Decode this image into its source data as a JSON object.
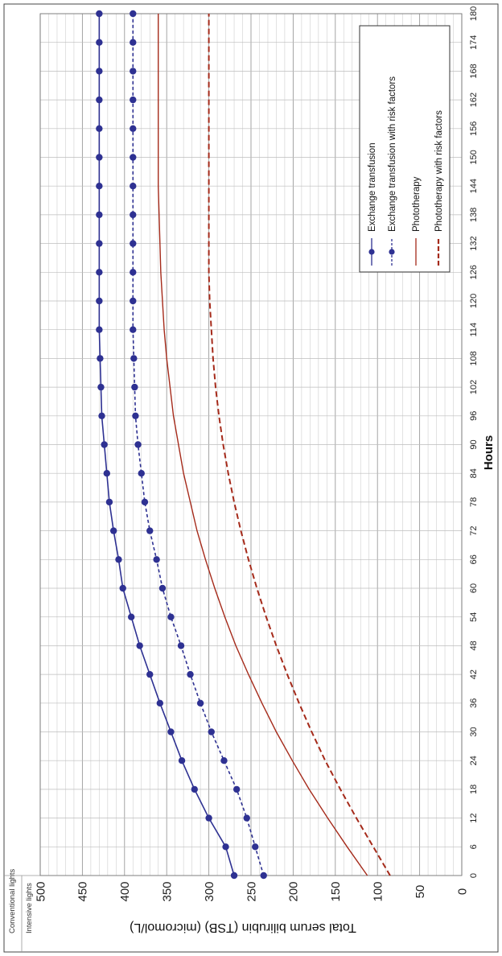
{
  "side_labels": {
    "conventional": "Conventional lights",
    "intensive": "Intensive lights"
  },
  "chart_data": {
    "type": "line",
    "title": "",
    "xlabel": "Hours",
    "ylabel": "Total serum bilirubin (TSB) (micromol/L)",
    "xlim": [
      0,
      180
    ],
    "ylim": [
      0,
      500
    ],
    "x_ticks": [
      0,
      6,
      12,
      18,
      24,
      30,
      36,
      42,
      48,
      54,
      60,
      66,
      72,
      78,
      84,
      90,
      96,
      102,
      108,
      114,
      120,
      126,
      132,
      138,
      144,
      150,
      156,
      162,
      168,
      174,
      180
    ],
    "y_ticks": [
      0,
      50,
      100,
      150,
      200,
      250,
      300,
      350,
      400,
      450,
      500
    ],
    "grid": true,
    "legend_position": "top-right",
    "series": [
      {
        "name": "Exchange transfusion",
        "color": "#2e3192",
        "style": "solid-markers",
        "x": [
          0,
          6,
          12,
          18,
          24,
          30,
          36,
          42,
          48,
          54,
          60,
          66,
          72,
          78,
          84,
          90,
          96,
          102,
          108,
          114,
          120,
          126,
          132,
          138,
          144,
          150,
          156,
          162,
          168,
          174,
          180
        ],
        "values": [
          270,
          280,
          300,
          317,
          332,
          345,
          358,
          370,
          382,
          392,
          402,
          407,
          413,
          418,
          421,
          424,
          427,
          428,
          429,
          430,
          430,
          430,
          430,
          430,
          430,
          430,
          430,
          430,
          430,
          430,
          430
        ]
      },
      {
        "name": "Exchange transfusion with risk factors",
        "color": "#2e3192",
        "style": "dashed-markers",
        "x": [
          0,
          6,
          12,
          18,
          24,
          30,
          36,
          42,
          48,
          54,
          60,
          66,
          72,
          78,
          84,
          90,
          96,
          102,
          108,
          114,
          120,
          126,
          132,
          138,
          144,
          150,
          156,
          162,
          168,
          174,
          180
        ],
        "values": [
          235,
          245,
          255,
          267,
          282,
          297,
          310,
          322,
          333,
          345,
          355,
          362,
          370,
          376,
          380,
          384,
          387,
          388,
          389,
          390,
          390,
          390,
          390,
          390,
          390,
          390,
          390,
          390,
          390,
          390,
          390
        ]
      },
      {
        "name": "Phototherapy",
        "color": "#a52a1a",
        "style": "solid",
        "x": [
          0,
          6,
          12,
          18,
          24,
          30,
          36,
          42,
          48,
          54,
          60,
          66,
          72,
          78,
          84,
          90,
          96,
          102,
          108,
          114,
          120,
          126,
          132,
          138,
          144,
          150,
          156,
          162,
          168,
          174,
          180
        ],
        "values": [
          112,
          136,
          159,
          181,
          201,
          220,
          237,
          253,
          268,
          281,
          293,
          304,
          314,
          322,
          330,
          336,
          342,
          346,
          350,
          353,
          355,
          357,
          358,
          359,
          360,
          360,
          360,
          360,
          360,
          360,
          360
        ]
      },
      {
        "name": "Phototherapy with risk factors",
        "color": "#a52a1a",
        "style": "dashed",
        "x": [
          0,
          6,
          12,
          18,
          24,
          30,
          36,
          42,
          48,
          54,
          60,
          66,
          72,
          78,
          84,
          90,
          96,
          102,
          108,
          114,
          120,
          126,
          132,
          138,
          144,
          150,
          156,
          162,
          168,
          174,
          180
        ],
        "values": [
          85,
          105,
          125,
          144,
          162,
          178,
          193,
          207,
          220,
          232,
          243,
          253,
          262,
          270,
          277,
          283,
          288,
          292,
          295,
          297,
          299,
          300,
          300,
          300,
          300,
          300,
          300,
          300,
          300,
          300,
          300
        ]
      }
    ]
  }
}
